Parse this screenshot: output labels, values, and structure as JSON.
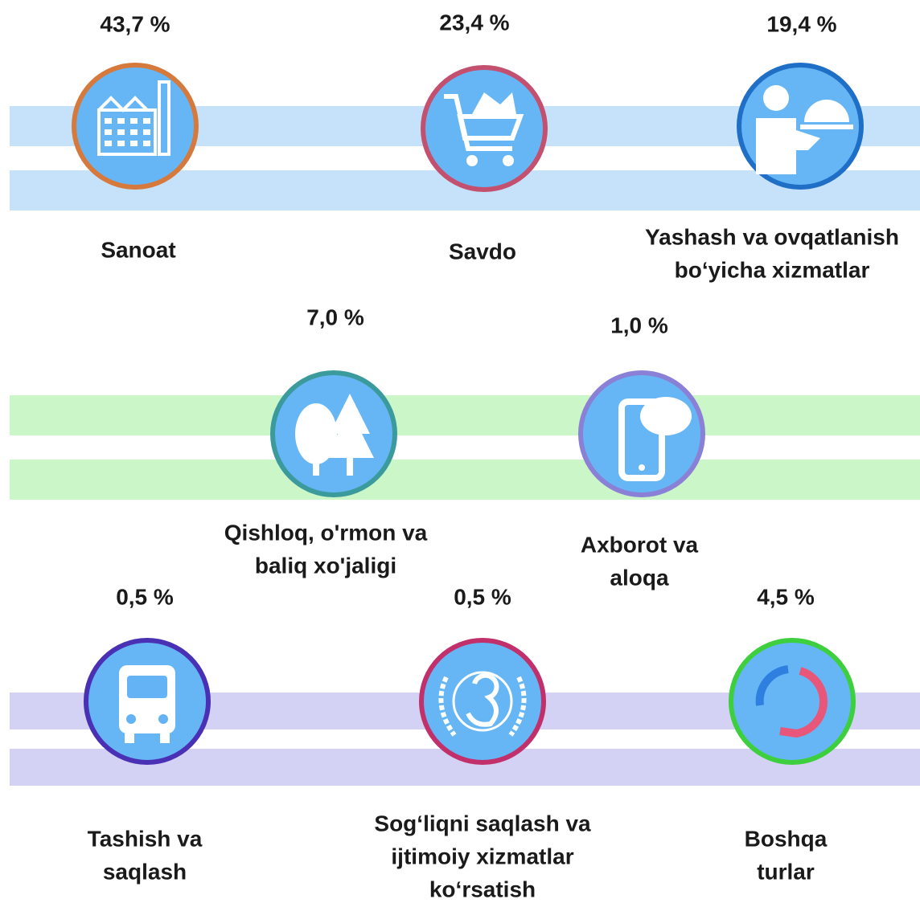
{
  "items": [
    {
      "value": "43,7 %",
      "label": [
        "Sanoat"
      ]
    },
    {
      "value": "23,4 %",
      "label": [
        "Savdo"
      ]
    },
    {
      "value": "19,4 %",
      "label": [
        "Yashash va ovqatlanish",
        "bo‘yicha xizmatlar"
      ]
    },
    {
      "value": "7,0 %",
      "label": [
        "Qishloq, o'rmon va",
        "baliq xo'jaligi"
      ]
    },
    {
      "value": "1,0 %",
      "label": [
        "Axborot va",
        "aloqa"
      ]
    },
    {
      "value": "0,5 %",
      "label": [
        "Tashish va",
        "saqlash"
      ]
    },
    {
      "value": "0,5 %",
      "label": [
        "Sog‘liqni saqlash va",
        "ijtimoiy xizmatlar",
        "ko‘rsatish"
      ]
    },
    {
      "value": "4,5 %",
      "label": [
        "Boshqa",
        "turlar"
      ]
    }
  ]
}
